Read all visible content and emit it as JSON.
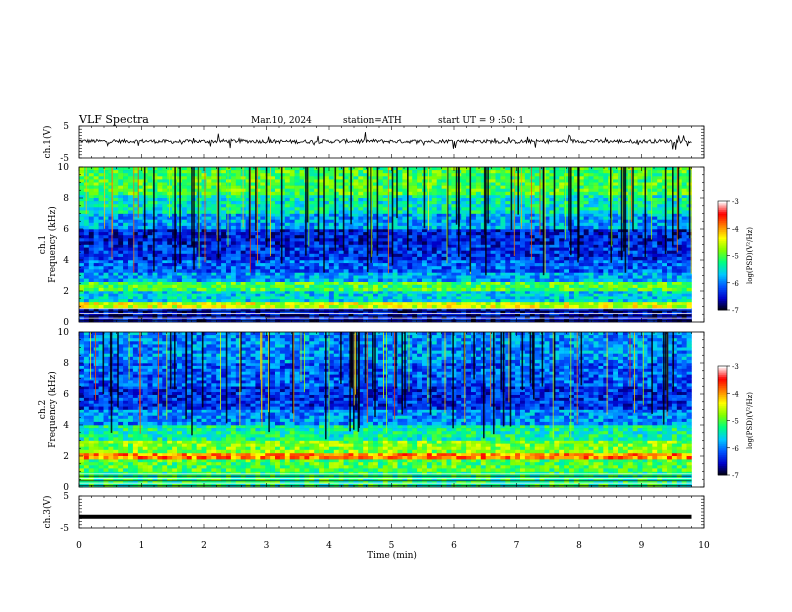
{
  "header": {
    "title": "VLF  Spectra",
    "date": "Mar.10, 2024",
    "station": "station=ATH",
    "start_time": "start  UT  =    9  :50: 1"
  },
  "colors": {
    "background": "#ffffff",
    "axes": "#000000",
    "colormap": [
      "#000000",
      "#0000c8",
      "#0055ff",
      "#00c8ff",
      "#00ff80",
      "#80ff00",
      "#ffff00",
      "#ff8000",
      "#ff0000",
      "#ffffff"
    ]
  },
  "chart_data": [
    {
      "type": "line",
      "panel": "ch1-waveform",
      "ylabel": "ch.1(V)",
      "ytick_labels": [
        "5",
        "-5"
      ],
      "ylim": [
        -5,
        5
      ],
      "xlim": [
        0,
        10
      ],
      "series": [
        {
          "x": [
            0,
            0.5,
            1,
            1.5,
            2,
            2.5,
            3,
            3.5,
            4,
            4.5,
            5,
            5.5,
            6,
            6.5,
            7,
            7.5,
            8,
            8.5,
            9,
            9.5,
            9.8
          ],
          "values": [
            0.3,
            0.2,
            0.3,
            0.1,
            0.2,
            0.3,
            0.2,
            0.1,
            0.2,
            0.3,
            0.2,
            0.2,
            0.3,
            0.2,
            0.1,
            0.2,
            0.3,
            0.2,
            0.2,
            0.3,
            0.2
          ]
        }
      ],
      "grid": false
    },
    {
      "type": "heatmap",
      "panel": "ch1-spectrogram",
      "ylabel": "ch.1\nFrequency  (kHz)",
      "ytick_labels": [
        "0",
        "2",
        "4",
        "6",
        "8",
        "10"
      ],
      "ylim": [
        0,
        10
      ],
      "xlim": [
        0,
        10
      ],
      "colorbar": {
        "label": "log(PSD)(V²/Hz)",
        "range": [
          -7,
          -3
        ],
        "tick_labels": [
          "-3",
          "-4",
          "-5",
          "-6",
          "-7"
        ]
      },
      "bands": [
        {
          "y": [
            0,
            0.9
          ],
          "level": -6.5
        },
        {
          "y": [
            0.9,
            1.3
          ],
          "level": -4.5
        },
        {
          "y": [
            1.3,
            2.0
          ],
          "level": -5.6
        },
        {
          "y": [
            2.0,
            2.6
          ],
          "level": -5.0
        },
        {
          "y": [
            2.6,
            3.2
          ],
          "level": -5.8
        },
        {
          "y": [
            3.2,
            4.0
          ],
          "level": -6.1
        },
        {
          "y": [
            4.0,
            5.0
          ],
          "level": -6.3
        },
        {
          "y": [
            5.0,
            6.0
          ],
          "level": -6.4
        },
        {
          "y": [
            6.0,
            7.0
          ],
          "level": -5.8
        },
        {
          "y": [
            7.0,
            8.2
          ],
          "level": -5.4
        },
        {
          "y": [
            8.2,
            10.0
          ],
          "level": -5.0
        }
      ]
    },
    {
      "type": "heatmap",
      "panel": "ch2-spectrogram",
      "ylabel": "ch.2\nFrequency  (kHz)",
      "ytick_labels": [
        "0",
        "2",
        "4",
        "6",
        "8",
        "10"
      ],
      "ylim": [
        0,
        10
      ],
      "xlim": [
        0,
        10
      ],
      "colorbar": {
        "label": "log(PSD)(V²/Hz)",
        "range": [
          -7,
          -3
        ],
        "tick_labels": [
          "-3",
          "-4",
          "-5",
          "-6",
          "-7"
        ]
      },
      "bands": [
        {
          "y": [
            0,
            1.0
          ],
          "level": -5.2
        },
        {
          "y": [
            1.0,
            1.8
          ],
          "level": -5.0
        },
        {
          "y": [
            1.8,
            2.2
          ],
          "level": -3.9
        },
        {
          "y": [
            2.2,
            3.0
          ],
          "level": -4.8
        },
        {
          "y": [
            3.0,
            4.0
          ],
          "level": -5.3
        },
        {
          "y": [
            4.0,
            5.0
          ],
          "level": -5.9
        },
        {
          "y": [
            5.0,
            6.5
          ],
          "level": -6.3
        },
        {
          "y": [
            6.5,
            8.0
          ],
          "level": -6.1
        },
        {
          "y": [
            8.0,
            10.0
          ],
          "level": -5.9
        }
      ]
    },
    {
      "type": "line",
      "panel": "ch3-waveform",
      "ylabel": "ch.3(V)",
      "ytick_labels": [
        "5",
        "-5"
      ],
      "ylim": [
        -5,
        5
      ],
      "xlim": [
        0,
        10
      ],
      "xlabel": "Time  (min)",
      "xtick_labels": [
        "0",
        "1",
        "2",
        "3",
        "4",
        "5",
        "6",
        "7",
        "8",
        "9",
        "10"
      ],
      "series": [
        {
          "x": [
            0,
            9.8
          ],
          "values": [
            -1.5,
            -1.5
          ]
        }
      ],
      "grid": false
    }
  ]
}
